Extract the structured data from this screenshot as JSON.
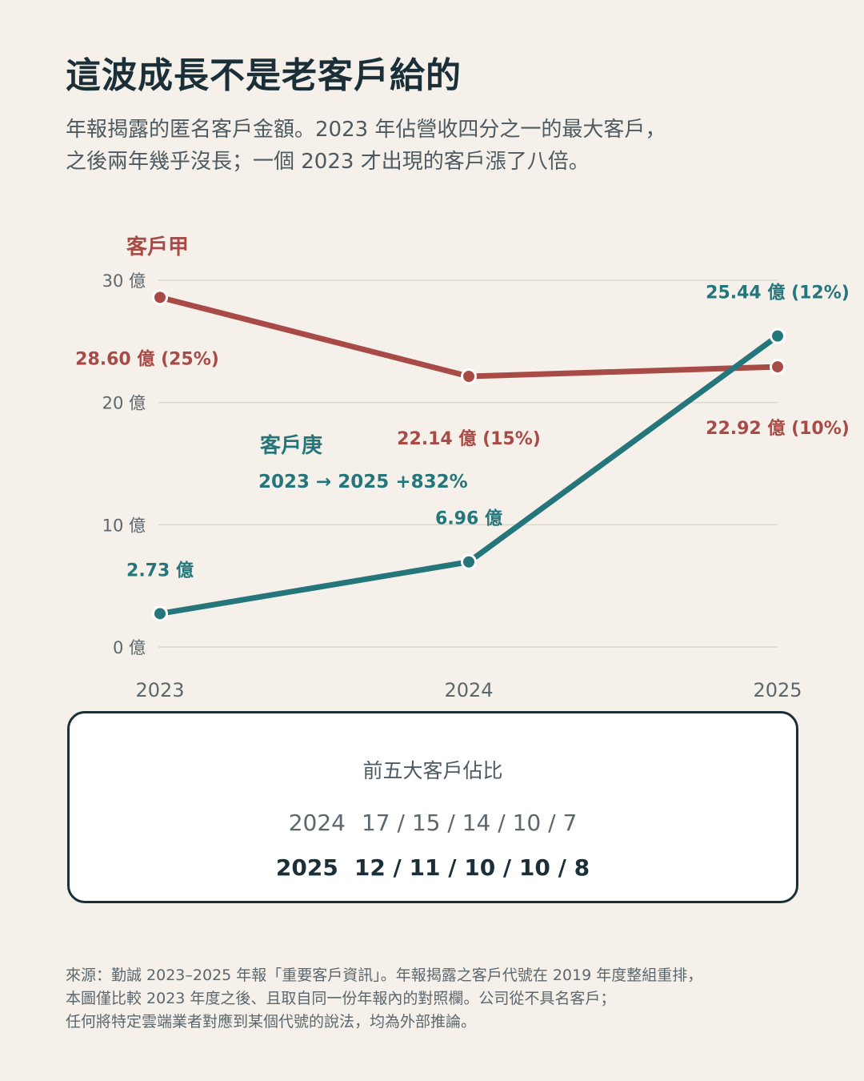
{
  "title": "這波成長不是老客戶給的",
  "subtitle_lines": [
    "年報揭露的匿名客戶金額。2023 年佔營收四分之一的最大客戶，",
    "之後兩年幾乎沒長；一個 2023 才出現的客戶漲了八倍。"
  ],
  "colors": {
    "client_a": "#a84b47",
    "client_g": "#24767a",
    "ink": "#1b2f38",
    "grid": "#dcd7cc",
    "muted": "#5c676d"
  },
  "chart_data": {
    "type": "line",
    "x": [
      "2023",
      "2024",
      "2025"
    ],
    "ylim": [
      0,
      30
    ],
    "yticks": [
      0,
      10,
      20,
      30
    ],
    "ytick_labels": [
      "0 億",
      "10 億",
      "20 億",
      "30 億"
    ],
    "grid": true,
    "series": [
      {
        "name": "客戶甲",
        "values": [
          28.6,
          22.14,
          22.92
        ],
        "point_labels": [
          "28.60 億 (25%)",
          "22.14 億 (15%)",
          "22.92 億 (10%)"
        ]
      },
      {
        "name": "客戶庚",
        "values": [
          2.73,
          6.96,
          25.44
        ],
        "point_labels": [
          "2.73 億",
          "6.96 億",
          "25.44 億 (12%)"
        ]
      }
    ],
    "annotations": [
      "2023 → 2025  +832%"
    ]
  },
  "panel": {
    "title": "前五大客戶佔比",
    "rows": [
      {
        "year": "2024",
        "values": "17 / 15 / 14 / 10 / 7"
      },
      {
        "year": "2025",
        "values": "12 / 11 / 10 / 10 / 8"
      }
    ]
  },
  "source_lines": [
    "來源：勤誠 2023–2025 年報「重要客戶資訊」。年報揭露之客戶代號在 2019 年度整組重排，",
    "本圖僅比較 2023 年度之後、且取自同一份年報內的對照欄。公司從不具名客戶；",
    "任何將特定雲端業者對應到某個代號的說法，均為外部推論。"
  ]
}
